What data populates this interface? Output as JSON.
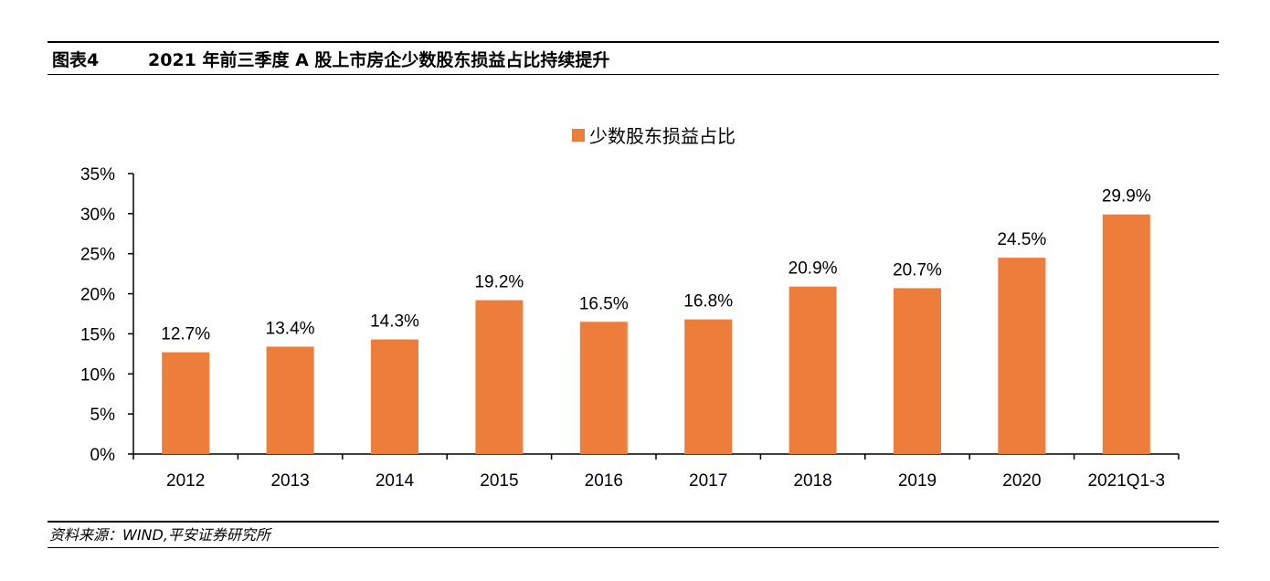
{
  "header": {
    "figure_label": "图表4",
    "title": "2021 年前三季度 A 股上市房企少数股东损益占比持续提升"
  },
  "footer": {
    "source": "资料来源：WIND,平安证券研究所"
  },
  "colors": {
    "bar": "#ED7D3A",
    "axis": "#000000",
    "rule": "#000000"
  },
  "chart_data": {
    "type": "bar",
    "title": "",
    "xlabel": "",
    "ylabel": "",
    "categories": [
      "2012",
      "2013",
      "2014",
      "2015",
      "2016",
      "2017",
      "2018",
      "2019",
      "2020",
      "2021Q1-3"
    ],
    "series": [
      {
        "name": "少数股东损益占比",
        "values": [
          12.7,
          13.4,
          14.3,
          19.2,
          16.5,
          16.8,
          20.9,
          20.7,
          24.5,
          29.9
        ],
        "data_labels": [
          "12.7%",
          "13.4%",
          "14.3%",
          "19.2%",
          "16.5%",
          "16.8%",
          "20.9%",
          "20.7%",
          "24.5%",
          "29.9%"
        ]
      }
    ],
    "ylim": [
      0,
      35
    ],
    "yticks": [
      0,
      5,
      10,
      15,
      20,
      25,
      30,
      35
    ],
    "ytick_labels": [
      "0%",
      "5%",
      "10%",
      "15%",
      "20%",
      "25%",
      "30%",
      "35%"
    ],
    "grid": false,
    "legend_position": "top-center"
  }
}
